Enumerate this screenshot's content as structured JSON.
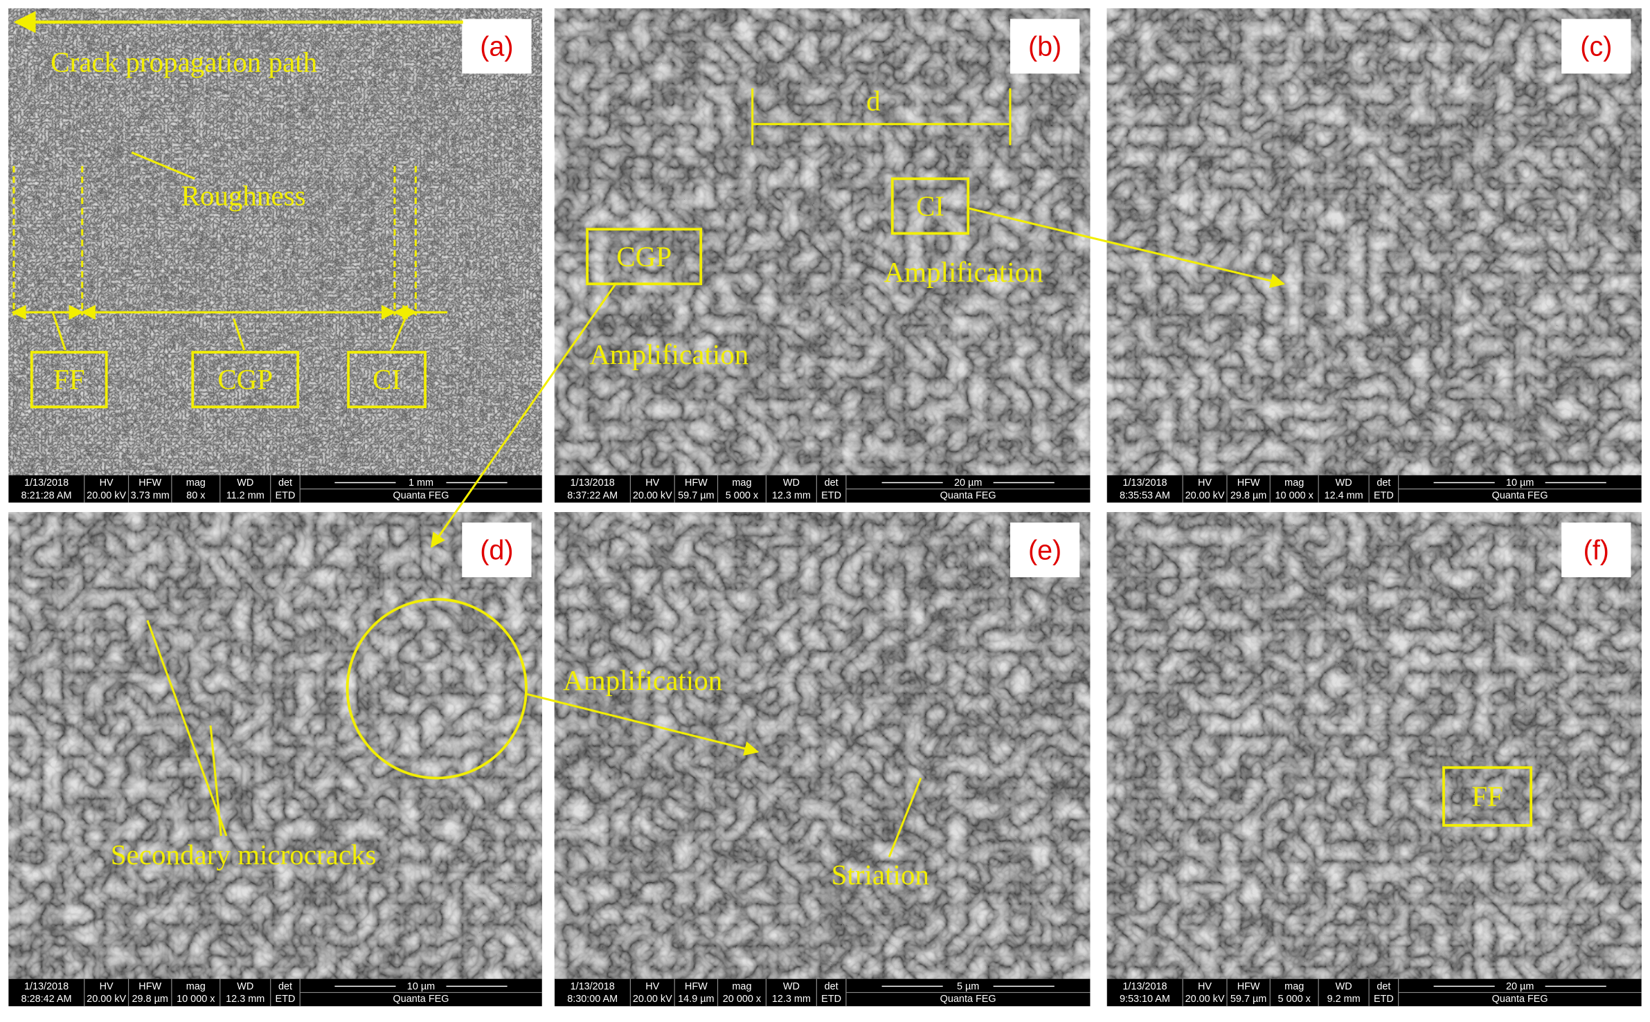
{
  "bar_headers": [
    "HV",
    "HFW",
    "mag",
    "WD",
    "det"
  ],
  "panels": [
    {
      "label": "(a)",
      "date": "1/13/2018",
      "time": "8:21:28 AM",
      "hv": "20.00 kV",
      "hfw": "3.73 mm",
      "mag": "80 x",
      "wd": "11.2 mm",
      "det": "ETD",
      "scale": "1 mm",
      "instrument": "Quanta FEG"
    },
    {
      "label": "(b)",
      "date": "1/13/2018",
      "time": "8:37:22 AM",
      "hv": "20.00 kV",
      "hfw": "59.7 µm",
      "mag": "5 000 x",
      "wd": "12.3 mm",
      "det": "ETD",
      "scale": "20 µm",
      "instrument": "Quanta FEG"
    },
    {
      "label": "(c)",
      "date": "1/13/2018",
      "time": "8:35:53 AM",
      "hv": "20.00 kV",
      "hfw": "29.8 µm",
      "mag": "10 000 x",
      "wd": "12.4 mm",
      "det": "ETD",
      "scale": "10 µm",
      "instrument": "Quanta FEG"
    },
    {
      "label": "(d)",
      "date": "1/13/2018",
      "time": "8:28:42 AM",
      "hv": "20.00 kV",
      "hfw": "29.8 µm",
      "mag": "10 000 x",
      "wd": "12.3 mm",
      "det": "ETD",
      "scale": "10 µm",
      "instrument": "Quanta FEG"
    },
    {
      "label": "(e)",
      "date": "1/13/2018",
      "time": "8:30:00 AM",
      "hv": "20.00 kV",
      "hfw": "14.9 µm",
      "mag": "20 000 x",
      "wd": "12.3 mm",
      "det": "ETD",
      "scale": "5 µm",
      "instrument": "Quanta FEG"
    },
    {
      "label": "(f)",
      "date": "1/13/2018",
      "time": "9:53:10 AM",
      "hv": "20.00 kV",
      "hfw": "59.7 µm",
      "mag": "5 000 x",
      "wd": "9.2 mm",
      "det": "ETD",
      "scale": "20 µm",
      "instrument": "Quanta FEG"
    }
  ],
  "annotations": [
    "Crack propagation path",
    "Roughness",
    "FF",
    "CGP",
    "CI",
    "d",
    "CI",
    "CGP",
    "Amplification",
    "Amplification",
    "Secondary microcracks",
    "Amplification",
    "Striation",
    "FF"
  ]
}
